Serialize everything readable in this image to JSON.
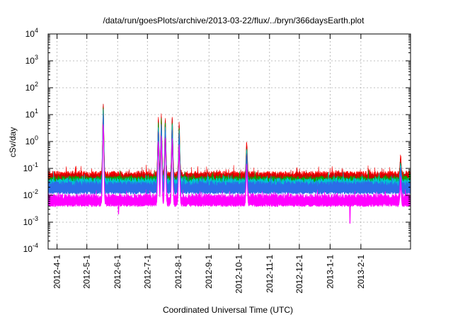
{
  "chart_data": {
    "type": "line",
    "title": "/data/run/goesPlots/archive/2013-03-22/flux/../bryn/366daysEarth.plot",
    "xlabel": "Coordinated Universal Time (UTC)",
    "ylabel": "cSv/day",
    "yscale": "log",
    "ylim": [
      0.0001,
      10000
    ],
    "y_ticks": [
      {
        "base": "10",
        "exp": "-4",
        "value": 0.0001
      },
      {
        "base": "10",
        "exp": "-3",
        "value": 0.001
      },
      {
        "base": "10",
        "exp": "-2",
        "value": 0.01
      },
      {
        "base": "10",
        "exp": "-1",
        "value": 0.1
      },
      {
        "base": "10",
        "exp": "0",
        "value": 1
      },
      {
        "base": "10",
        "exp": "1",
        "value": 10
      },
      {
        "base": "10",
        "exp": "2",
        "value": 100
      },
      {
        "base": "10",
        "exp": "3",
        "value": 1000
      },
      {
        "base": "10",
        "exp": "4",
        "value": 10000
      }
    ],
    "xlim_days": [
      0,
      365
    ],
    "x_ticks": [
      {
        "label": "2012-4-1",
        "day": 9
      },
      {
        "label": "2012-5-1",
        "day": 39
      },
      {
        "label": "2012-6-1",
        "day": 70
      },
      {
        "label": "2012-7-1",
        "day": 100
      },
      {
        "label": "2012-8-1",
        "day": 131
      },
      {
        "label": "2012-9-1",
        "day": 162
      },
      {
        "label": "2012-10-1",
        "day": 192
      },
      {
        "label": "2012-11-1",
        "day": 223
      },
      {
        "label": "2012-12-1",
        "day": 253
      },
      {
        "label": "2013-1-1",
        "day": 284
      },
      {
        "label": "2013-2-1",
        "day": 315
      }
    ],
    "grid": true,
    "series": [
      {
        "name": "red",
        "color": "#ff0000",
        "baseline": 0.045,
        "events": [
          {
            "day": 55.5,
            "peak": 28
          },
          {
            "day": 111,
            "peak": 8
          },
          {
            "day": 114,
            "peak": 11
          },
          {
            "day": 118,
            "peak": 8
          },
          {
            "day": 125,
            "peak": 9
          },
          {
            "day": 132,
            "peak": 5
          },
          {
            "day": 200,
            "peak": 1
          },
          {
            "day": 355,
            "peak": 0.3
          }
        ]
      },
      {
        "name": "dark-red",
        "color": "#cc0000",
        "baseline": 0.038,
        "events": [
          {
            "day": 55.5,
            "peak": 23
          },
          {
            "day": 111,
            "peak": 6
          },
          {
            "day": 114,
            "peak": 8.5
          },
          {
            "day": 118,
            "peak": 6.5
          },
          {
            "day": 125,
            "peak": 7
          },
          {
            "day": 132,
            "peak": 4
          },
          {
            "day": 200,
            "peak": 0.75
          },
          {
            "day": 355,
            "peak": 0.22
          }
        ]
      },
      {
        "name": "green",
        "color": "#00aa00",
        "baseline": 0.03,
        "events": [
          {
            "day": 55.5,
            "peak": 19
          },
          {
            "day": 111,
            "peak": 4.6
          },
          {
            "day": 114,
            "peak": 6.6
          },
          {
            "day": 118,
            "peak": 5
          },
          {
            "day": 125,
            "peak": 5.5
          },
          {
            "day": 132,
            "peak": 3.2
          },
          {
            "day": 200,
            "peak": 0.58
          },
          {
            "day": 355,
            "peak": 0.17
          }
        ]
      },
      {
        "name": "cyan",
        "color": "#00c4d4",
        "baseline": 0.025,
        "events": [
          {
            "day": 55.5,
            "peak": 15
          },
          {
            "day": 111,
            "peak": 3.6
          },
          {
            "day": 114,
            "peak": 5.1
          },
          {
            "day": 118,
            "peak": 4
          },
          {
            "day": 125,
            "peak": 4.3
          },
          {
            "day": 132,
            "peak": 2.5
          },
          {
            "day": 200,
            "peak": 0.45
          },
          {
            "day": 355,
            "peak": 0.14
          }
        ]
      },
      {
        "name": "blue",
        "color": "#2c6de8",
        "baseline": 0.019,
        "events": [
          {
            "day": 55.5,
            "peak": 11
          },
          {
            "day": 111,
            "peak": 2.7
          },
          {
            "day": 114,
            "peak": 3.9
          },
          {
            "day": 118,
            "peak": 3
          },
          {
            "day": 125,
            "peak": 3.3
          },
          {
            "day": 132,
            "peak": 1.9
          },
          {
            "day": 200,
            "peak": 0.35
          },
          {
            "day": 355,
            "peak": 0.11
          }
        ]
      },
      {
        "name": "magenta",
        "color": "#ff00ff",
        "baseline": 0.0065,
        "events": [
          {
            "day": 55.5,
            "peak": 5
          },
          {
            "day": 111,
            "peak": 1.2
          },
          {
            "day": 114,
            "peak": 1.7
          },
          {
            "day": 118,
            "peak": 1.3
          },
          {
            "day": 125,
            "peak": 1.4
          },
          {
            "day": 132,
            "peak": 0.8
          },
          {
            "day": 200,
            "peak": 0.15
          },
          {
            "day": 355,
            "peak": 0.05
          }
        ],
        "dips": [
          {
            "day": 71,
            "min": 0.002
          },
          {
            "day": 304,
            "min": 0.0009
          }
        ]
      }
    ]
  }
}
